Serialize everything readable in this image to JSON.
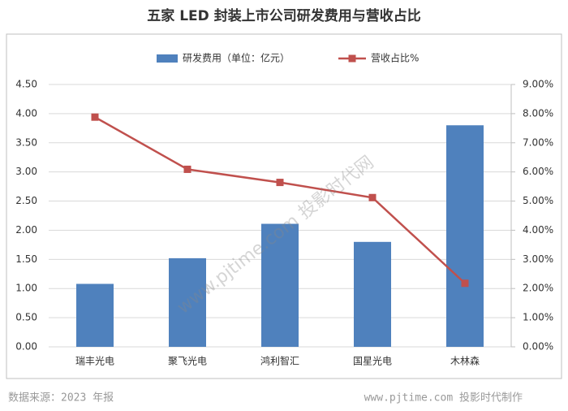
{
  "chart_data": {
    "type": "bar_line",
    "title": "五家 LED 封装上市公司研发费用与营收占比",
    "source": "数据来源：2023 年报",
    "credit": "www.pjtime.com 投影时代制作",
    "watermark": "www.pjtime.com 投影时代网",
    "categories": [
      "瑞丰光电",
      "聚飞光电",
      "鸿利智汇",
      "国星光电",
      "木林森"
    ],
    "series": [
      {
        "name": "研发费用（单位：亿元）",
        "type": "bar",
        "color": "#4f81bd",
        "values": [
          1.08,
          1.52,
          2.11,
          1.8,
          3.8
        ]
      },
      {
        "name": "营收占比%",
        "type": "line",
        "axis": "y2",
        "color": "#c0504d",
        "values": [
          7.88,
          6.09,
          5.64,
          5.12,
          2.18
        ]
      }
    ],
    "ylim": [
      0,
      4.5
    ],
    "yticks": [
      {
        "value": 0,
        "label": "0.00"
      },
      {
        "value": 0.5,
        "label": "0.50"
      },
      {
        "value": 1,
        "label": "1.00"
      },
      {
        "value": 1.5,
        "label": "1.50"
      },
      {
        "value": 2,
        "label": "2.00"
      },
      {
        "value": 2.5,
        "label": "2.50"
      },
      {
        "value": 3,
        "label": "3.00"
      },
      {
        "value": 3.5,
        "label": "3.50"
      },
      {
        "value": 4,
        "label": "4.00"
      },
      {
        "value": 4.5,
        "label": "4.50"
      }
    ],
    "y2lim": [
      0,
      9
    ],
    "y2ticks": [
      {
        "value": 0,
        "label": "0.00%"
      },
      {
        "value": 1,
        "label": "1.00%"
      },
      {
        "value": 2,
        "label": "2.00%"
      },
      {
        "value": 3,
        "label": "3.00%"
      },
      {
        "value": 4,
        "label": "4.00%"
      },
      {
        "value": 5,
        "label": "5.00%"
      },
      {
        "value": 6,
        "label": "6.00%"
      },
      {
        "value": 7,
        "label": "7.00%"
      },
      {
        "value": 8,
        "label": "8.00%"
      },
      {
        "value": 9,
        "label": "9.00%"
      }
    ],
    "grid": true
  }
}
